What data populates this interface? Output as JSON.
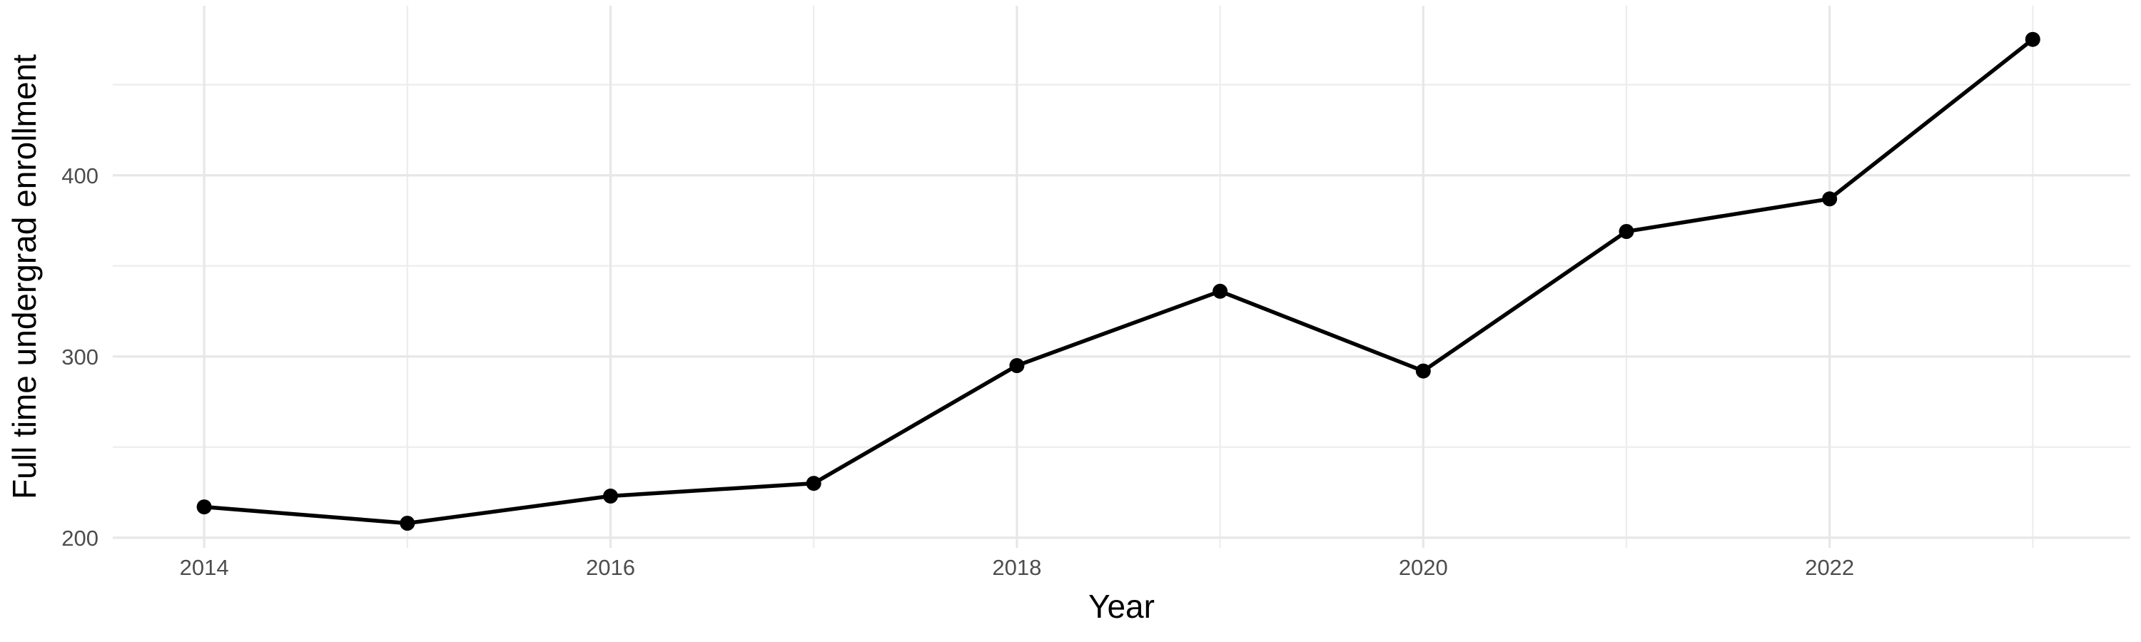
{
  "chart_data": {
    "type": "line",
    "title": "",
    "xlabel": "Year",
    "ylabel": "Full time undergrad enrollment",
    "x": [
      2014,
      2015,
      2016,
      2017,
      2018,
      2019,
      2020,
      2021,
      2022,
      2023
    ],
    "values": [
      217,
      208,
      223,
      230,
      295,
      336,
      292,
      369,
      387,
      475
    ],
    "x_ticks_major": [
      2014,
      2016,
      2018,
      2020,
      2022
    ],
    "x_gridlines_minor": [
      2015,
      2017,
      2019,
      2021,
      2023
    ],
    "y_ticks_major": [
      200,
      300,
      400
    ],
    "y_gridlines_minor": [
      250,
      350,
      450
    ],
    "xlim": [
      2013.55,
      2023.48
    ],
    "ylim": [
      194.4,
      493.6
    ],
    "grid": "on",
    "legend": "none",
    "colors": {
      "line": "#000000",
      "point": "#000000",
      "grid_major": "#E7E7E7",
      "grid_minor": "#EDEDED",
      "tick_label": "#4D4D4D",
      "axis_title": "#000000",
      "background": "#FFFFFF"
    }
  }
}
